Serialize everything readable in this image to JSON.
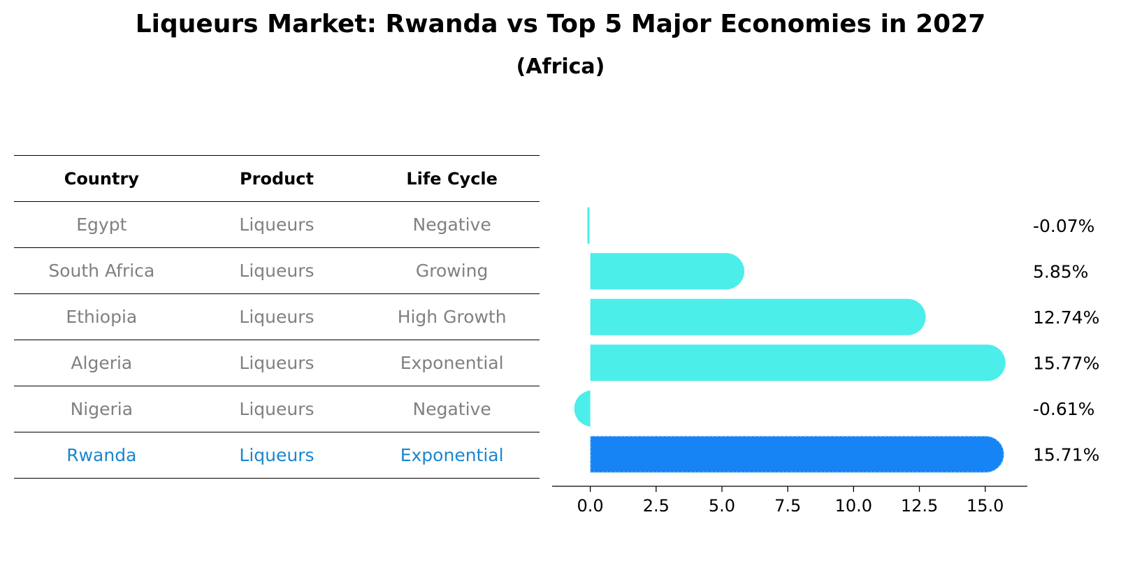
{
  "title": "Liqueurs Market: Rwanda vs Top 5 Major Economies in 2027",
  "subtitle": "(Africa)",
  "table": {
    "headers": [
      "Country",
      "Product",
      "Life Cycle"
    ],
    "rows": [
      {
        "country": "Egypt",
        "product": "Liqueurs",
        "life_cycle": "Negative",
        "highlight": false
      },
      {
        "country": "South Africa",
        "product": "Liqueurs",
        "life_cycle": "Growing",
        "highlight": false
      },
      {
        "country": "Ethiopia",
        "product": "Liqueurs",
        "life_cycle": "High Growth",
        "highlight": false
      },
      {
        "country": "Algeria",
        "product": "Liqueurs",
        "life_cycle": "Exponential",
        "highlight": false
      },
      {
        "country": "Nigeria",
        "product": "Liqueurs",
        "life_cycle": "Negative",
        "highlight": false
      },
      {
        "country": "Rwanda",
        "product": "Liqueurs",
        "life_cycle": "Exponential",
        "highlight": true
      }
    ]
  },
  "colors": {
    "normal_text": "#808080",
    "highlight_text": "#1a86d0",
    "bar": "#4ceeea",
    "highlight_bar": "#1784f5"
  },
  "chart_data": {
    "type": "bar",
    "orientation": "horizontal",
    "categories": [
      "Egypt",
      "South Africa",
      "Ethiopia",
      "Algeria",
      "Nigeria",
      "Rwanda"
    ],
    "values": [
      -0.07,
      5.85,
      12.74,
      15.77,
      -0.61,
      15.71
    ],
    "labels": [
      "-0.07%",
      "5.85%",
      "12.74%",
      "15.77%",
      "-0.61%",
      "15.71%"
    ],
    "highlight_index": 5,
    "xlim": [
      -1.45,
      16.6
    ],
    "xticks": [
      0.0,
      2.5,
      5.0,
      7.5,
      10.0,
      12.5,
      15.0
    ],
    "xtick_labels": [
      "0.0",
      "2.5",
      "5.0",
      "7.5",
      "10.0",
      "12.5",
      "15.0"
    ],
    "grid": false
  }
}
